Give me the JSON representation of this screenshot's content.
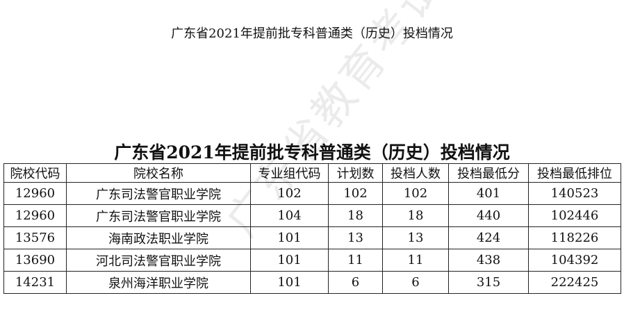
{
  "page_title": "广东省2021年提前批专科普通类（历史）投档情况",
  "table": {
    "title": "广东省2021年提前批专科普通类（历史）投档情况",
    "headers": [
      "院校代码",
      "院校名称",
      "专业组代码",
      "计划数",
      "投档人数",
      "投档最低分",
      "投档最低排位"
    ],
    "rows": [
      [
        "12960",
        "广东司法警官职业学院",
        "102",
        "102",
        "102",
        "401",
        "140523"
      ],
      [
        "12960",
        "广东司法警官职业学院",
        "104",
        "18",
        "18",
        "440",
        "102446"
      ],
      [
        "13576",
        "海南政法职业学院",
        "101",
        "13",
        "13",
        "424",
        "118226"
      ],
      [
        "13690",
        "河北司法警官职业学院",
        "101",
        "11",
        "11",
        "438",
        "104392"
      ],
      [
        "14231",
        "泉州海洋职业学院",
        "101",
        "6",
        "6",
        "315",
        "222425"
      ]
    ]
  },
  "watermark": "广东省教育考试院"
}
